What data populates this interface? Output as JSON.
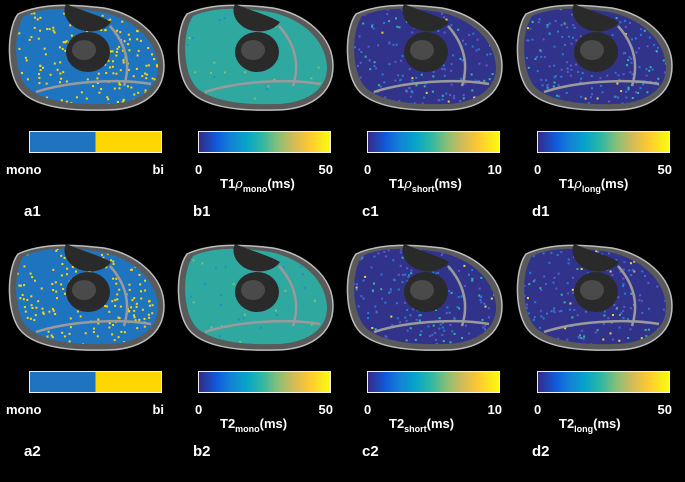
{
  "rows": [
    {
      "panels": [
        {
          "id": "a1",
          "cmap": "binary",
          "fill": "binary",
          "tick_min": "mono",
          "tick_max": "bi",
          "title_prefix": "",
          "title_greek": "",
          "title_sub": "",
          "title_suffix": ""
        },
        {
          "id": "b1",
          "cmap": "parula",
          "fill": "smooth",
          "tick_min": "0",
          "tick_max": "50",
          "title_prefix": "T1",
          "title_greek": "ρ",
          "title_sub": "mono",
          "title_suffix": "(ms)"
        },
        {
          "id": "c1",
          "cmap": "parula",
          "fill": "dark",
          "tick_min": "0",
          "tick_max": "10",
          "title_prefix": "T1",
          "title_greek": "ρ",
          "title_sub": "short",
          "title_suffix": "(ms)"
        },
        {
          "id": "d1",
          "cmap": "parula",
          "fill": "dark",
          "tick_min": "0",
          "tick_max": "50",
          "title_prefix": "T1",
          "title_greek": "ρ",
          "title_sub": "long",
          "title_suffix": "(ms)"
        }
      ]
    },
    {
      "panels": [
        {
          "id": "a2",
          "cmap": "binary",
          "fill": "binary",
          "tick_min": "mono",
          "tick_max": "bi",
          "title_prefix": "",
          "title_greek": "",
          "title_sub": "",
          "title_suffix": ""
        },
        {
          "id": "b2",
          "cmap": "parula",
          "fill": "smooth",
          "tick_min": "0",
          "tick_max": "50",
          "title_prefix": "T2",
          "title_greek": "",
          "title_sub": "mono",
          "title_suffix": "(ms)"
        },
        {
          "id": "c2",
          "cmap": "parula",
          "fill": "dark",
          "tick_min": "0",
          "tick_max": "10",
          "title_prefix": "T2",
          "title_greek": "",
          "title_sub": "short",
          "title_suffix": "(ms)"
        },
        {
          "id": "d2",
          "cmap": "parula",
          "fill": "dark",
          "tick_min": "0",
          "tick_max": "50",
          "title_prefix": "T2",
          "title_greek": "",
          "title_sub": "long",
          "title_suffix": "(ms)"
        }
      ]
    }
  ],
  "colors": {
    "mono": "#1f74c0",
    "bi": "#ffd700",
    "background": "#000000",
    "tissue": "#6e6e6e",
    "bone": "#2a2a2a"
  }
}
